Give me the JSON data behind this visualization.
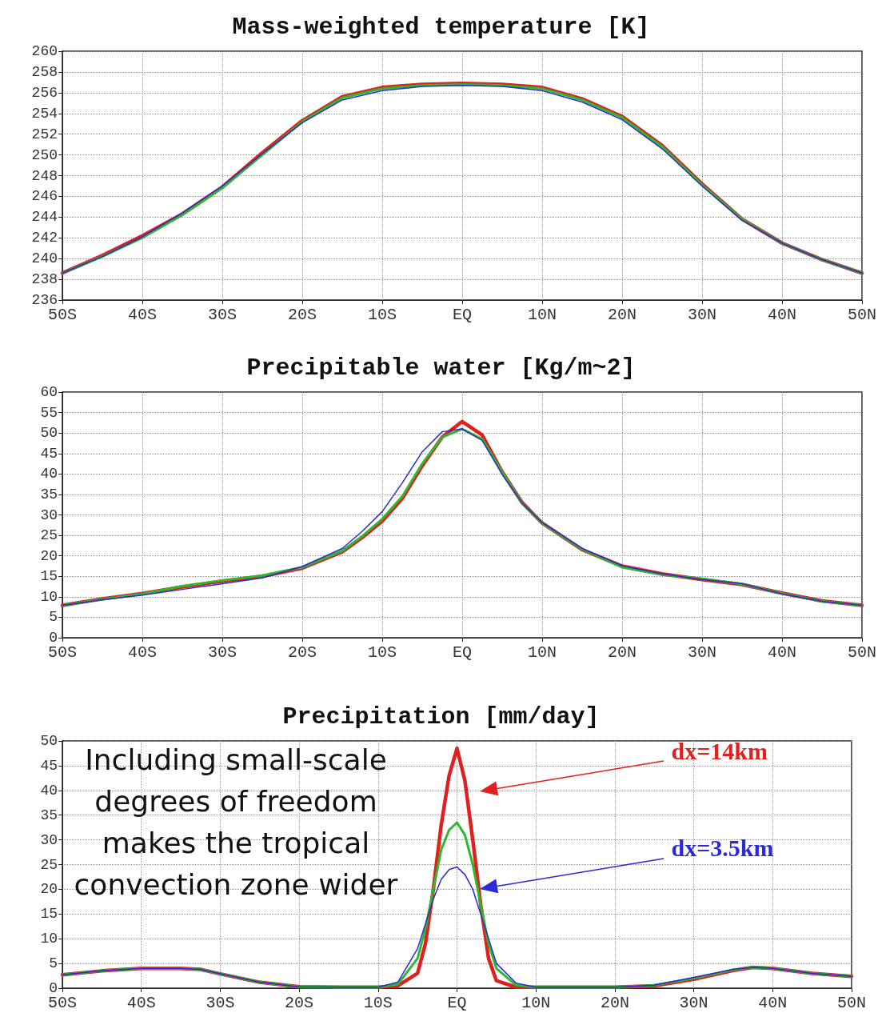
{
  "chart_data": [
    {
      "type": "line",
      "title": "Mass-weighted temperature [K]",
      "grid": true,
      "line_style": "solid",
      "xlim": [
        -50,
        50
      ],
      "xticks": [
        {
          "value": -50,
          "label": "50S"
        },
        {
          "value": -40,
          "label": "40S"
        },
        {
          "value": -30,
          "label": "30S"
        },
        {
          "value": -20,
          "label": "20S"
        },
        {
          "value": -10,
          "label": "10S"
        },
        {
          "value": 0,
          "label": "EQ"
        },
        {
          "value": 10,
          "label": "10N"
        },
        {
          "value": 20,
          "label": "20N"
        },
        {
          "value": 30,
          "label": "30N"
        },
        {
          "value": 40,
          "label": "40N"
        },
        {
          "value": 50,
          "label": "50N"
        }
      ],
      "ylim": [
        236,
        260
      ],
      "yticks": [
        236,
        238,
        240,
        242,
        244,
        246,
        248,
        250,
        252,
        254,
        256,
        258,
        260
      ],
      "x": [
        -50,
        -45,
        -40,
        -35,
        -30,
        -25,
        -20,
        -15,
        -10,
        -5,
        0,
        5,
        10,
        15,
        20,
        25,
        30,
        35,
        40,
        45,
        50
      ],
      "series": [
        {
          "color": "#e0201e",
          "values": [
            238.6,
            240.3,
            242.2,
            244.3,
            246.9,
            250.2,
            253.3,
            255.6,
            256.5,
            256.8,
            256.9,
            256.8,
            256.5,
            255.4,
            253.7,
            250.9,
            247.2,
            243.8,
            241.5,
            239.9,
            238.6
          ]
        },
        {
          "color": "#2db82d",
          "values": [
            238.6,
            240.2,
            242.0,
            244.2,
            246.8,
            250.0,
            253.2,
            255.5,
            256.4,
            256.7,
            256.8,
            256.7,
            256.4,
            255.3,
            253.6,
            250.8,
            247.1,
            243.8,
            241.5,
            239.9,
            238.6
          ]
        },
        {
          "color": "#2a2ad6",
          "values": [
            238.6,
            240.2,
            242.1,
            244.4,
            247.0,
            250.1,
            253.1,
            255.3,
            256.2,
            256.6,
            256.7,
            256.6,
            256.2,
            255.1,
            253.4,
            250.6,
            247.0,
            243.7,
            241.5,
            239.9,
            238.6
          ]
        }
      ]
    },
    {
      "type": "line",
      "title": "Precipitable water [Kg/m~2]",
      "grid": true,
      "line_style": "solid",
      "xlim": [
        -50,
        50
      ],
      "xticks": [
        {
          "value": -50,
          "label": "50S"
        },
        {
          "value": -40,
          "label": "40S"
        },
        {
          "value": -30,
          "label": "30S"
        },
        {
          "value": -20,
          "label": "20S"
        },
        {
          "value": -10,
          "label": "10S"
        },
        {
          "value": 0,
          "label": "EQ"
        },
        {
          "value": 10,
          "label": "10N"
        },
        {
          "value": 20,
          "label": "20N"
        },
        {
          "value": 30,
          "label": "30N"
        },
        {
          "value": 40,
          "label": "40N"
        },
        {
          "value": 50,
          "label": "50N"
        }
      ],
      "ylim": [
        0,
        60
      ],
      "yticks": [
        0,
        5,
        10,
        15,
        20,
        25,
        30,
        35,
        40,
        45,
        50,
        55,
        60
      ],
      "x": [
        -50,
        -45,
        -40,
        -35,
        -30,
        -25,
        -20,
        -15,
        -12.5,
        -10,
        -7.5,
        -5,
        -2.5,
        0,
        2.5,
        5,
        7.5,
        10,
        15,
        20,
        25,
        30,
        35,
        40,
        45,
        50
      ],
      "series": [
        {
          "color": "#e0201e",
          "values": [
            7.9,
            9.5,
            10.8,
            12.4,
            13.8,
            15.0,
            17.0,
            21.0,
            24.5,
            28.5,
            34,
            42,
            49,
            52.8,
            49.5,
            40.5,
            33,
            28,
            21.5,
            17.5,
            15.6,
            14.2,
            13.0,
            10.9,
            9.0,
            7.9
          ]
        },
        {
          "color": "#2db82d",
          "values": [
            7.9,
            9.4,
            10.7,
            12.6,
            14.0,
            15.2,
            17.2,
            21.2,
            24.8,
            29,
            34.5,
            42.5,
            49,
            51,
            48.5,
            40.5,
            32.8,
            28,
            21.6,
            17.2,
            15.4,
            14.4,
            13.1,
            10.8,
            8.9,
            7.9
          ]
        },
        {
          "color": "#2a2ad6",
          "values": [
            7.9,
            9.3,
            10.4,
            11.8,
            13.2,
            14.6,
            17.4,
            21.8,
            26,
            30.8,
            37.8,
            45.4,
            50.3,
            51,
            48.2,
            39.9,
            32.9,
            28.1,
            21.8,
            17.6,
            15.6,
            14.2,
            13.2,
            10.7,
            8.9,
            7.9
          ]
        }
      ]
    },
    {
      "type": "line",
      "title": "Precipitation [mm/day]",
      "grid": true,
      "line_style": "solid",
      "annotations": [
        "Including small-scale degrees of freedom makes the tropical convection zone wider"
      ],
      "xlim": [
        -50,
        50
      ],
      "xticks": [
        {
          "value": -50,
          "label": "50S"
        },
        {
          "value": -40,
          "label": "40S"
        },
        {
          "value": -30,
          "label": "30S"
        },
        {
          "value": -20,
          "label": "20S"
        },
        {
          "value": -10,
          "label": "10S"
        },
        {
          "value": 0,
          "label": "EQ"
        },
        {
          "value": 10,
          "label": "10N"
        },
        {
          "value": 20,
          "label": "20N"
        },
        {
          "value": 30,
          "label": "30N"
        },
        {
          "value": 40,
          "label": "40N"
        },
        {
          "value": 50,
          "label": "50N"
        }
      ],
      "ylim": [
        0,
        50
      ],
      "yticks": [
        0,
        5,
        10,
        15,
        20,
        25,
        30,
        35,
        40,
        45,
        50
      ],
      "x": [
        -50,
        -45,
        -40,
        -35,
        -32.5,
        -30,
        -25,
        -20,
        -15,
        -10,
        -7.5,
        -5,
        -4,
        -3,
        -2,
        -1,
        0,
        1,
        2,
        3,
        4,
        5,
        7.5,
        10,
        15,
        20,
        25,
        30,
        35,
        37.5,
        40,
        45,
        50
      ],
      "series": [
        {
          "name": "dx=14km",
          "color": "#e0201e",
          "values": [
            2.7,
            3.5,
            4.0,
            4.0,
            3.8,
            2.9,
            1.2,
            0.3,
            0.2,
            0.2,
            0.5,
            3,
            9,
            20,
            33,
            43,
            48.5,
            42,
            30,
            17,
            6,
            1.5,
            0.2,
            0.2,
            0.2,
            0.2,
            0.5,
            1.8,
            3.6,
            4.2,
            4.0,
            3.0,
            2.4
          ]
        },
        {
          "color": "#2db82d",
          "values": [
            2.7,
            3.5,
            4.0,
            4.0,
            3.8,
            2.9,
            1.2,
            0.3,
            0.2,
            0.2,
            0.8,
            6,
            12,
            20,
            28,
            32,
            33.5,
            31,
            25,
            17,
            9,
            4,
            0.6,
            0.2,
            0.2,
            0.2,
            0.6,
            2.0,
            3.7,
            4.2,
            4.0,
            3.0,
            2.4
          ]
        },
        {
          "name": "dx=3.5km",
          "color": "#2a2ad6",
          "values": [
            2.7,
            3.5,
            4.0,
            4.0,
            3.8,
            2.9,
            1.2,
            0.3,
            0.2,
            0.2,
            1.2,
            8,
            13,
            18,
            22,
            24,
            24.5,
            23,
            20,
            15,
            10,
            5,
            1,
            0.2,
            0.2,
            0.2,
            0.6,
            2.2,
            3.8,
            4.2,
            4.0,
            3.0,
            2.4
          ]
        }
      ]
    }
  ]
}
